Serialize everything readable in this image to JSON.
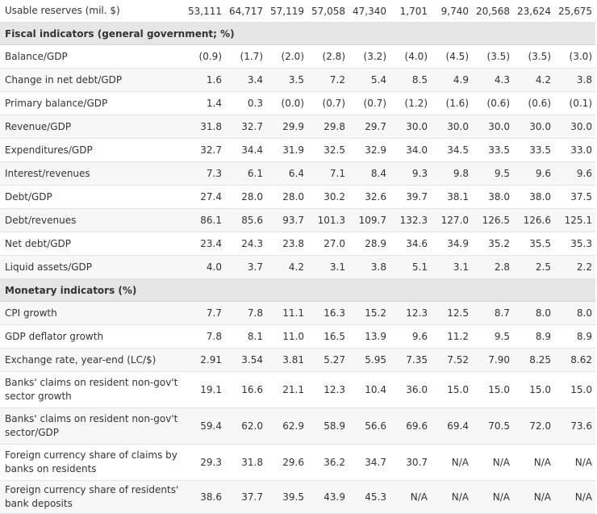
{
  "top_row": {
    "label": "Usable reserves (mil. $)",
    "values": [
      "53,111",
      "64,717",
      "57,119",
      "57,058",
      "47,340",
      "1,701",
      "9,740",
      "20,568",
      "23,624",
      "25,675"
    ]
  },
  "sections": [
    {
      "title": "Fiscal indicators (general government; %)",
      "rows": [
        {
          "label": "Balance/GDP",
          "values": [
            "(0.9)",
            "(1.7)",
            "(2.0)",
            "(2.8)",
            "(3.2)",
            "(4.0)",
            "(4.5)",
            "(3.5)",
            "(3.5)",
            "(3.0)"
          ]
        },
        {
          "label": "Change in net debt/GDP",
          "values": [
            "1.6",
            "3.4",
            "3.5",
            "7.2",
            "5.4",
            "8.5",
            "4.9",
            "4.3",
            "4.2",
            "3.8"
          ]
        },
        {
          "label": "Primary balance/GDP",
          "values": [
            "1.4",
            "0.3",
            "(0.0)",
            "(0.7)",
            "(0.7)",
            "(1.2)",
            "(1.6)",
            "(0.6)",
            "(0.6)",
            "(0.1)"
          ]
        },
        {
          "label": "Revenue/GDP",
          "values": [
            "31.8",
            "32.7",
            "29.9",
            "29.8",
            "29.7",
            "30.0",
            "30.0",
            "30.0",
            "30.0",
            "30.0"
          ]
        },
        {
          "label": "Expenditures/GDP",
          "values": [
            "32.7",
            "34.4",
            "31.9",
            "32.5",
            "32.9",
            "34.0",
            "34.5",
            "33.5",
            "33.5",
            "33.0"
          ]
        },
        {
          "label": "Interest/revenues",
          "values": [
            "7.3",
            "6.1",
            "6.4",
            "7.1",
            "8.4",
            "9.3",
            "9.8",
            "9.5",
            "9.6",
            "9.6"
          ]
        },
        {
          "label": "Debt/GDP",
          "values": [
            "27.4",
            "28.0",
            "28.0",
            "30.2",
            "32.6",
            "39.7",
            "38.1",
            "38.0",
            "38.0",
            "37.5"
          ]
        },
        {
          "label": "Debt/revenues",
          "values": [
            "86.1",
            "85.6",
            "93.7",
            "101.3",
            "109.7",
            "132.3",
            "127.0",
            "126.5",
            "126.6",
            "125.1"
          ]
        },
        {
          "label": "Net debt/GDP",
          "values": [
            "23.4",
            "24.3",
            "23.8",
            "27.0",
            "28.9",
            "34.6",
            "34.9",
            "35.2",
            "35.5",
            "35.3"
          ]
        },
        {
          "label": "Liquid assets/GDP",
          "values": [
            "4.0",
            "3.7",
            "4.2",
            "3.1",
            "3.8",
            "5.1",
            "3.1",
            "2.8",
            "2.5",
            "2.2"
          ]
        }
      ]
    },
    {
      "title": "Monetary indicators (%)",
      "rows": [
        {
          "label": "CPI growth",
          "values": [
            "7.7",
            "7.8",
            "11.1",
            "16.3",
            "15.2",
            "12.3",
            "12.5",
            "8.7",
            "8.0",
            "8.0"
          ]
        },
        {
          "label": "GDP deflator growth",
          "values": [
            "7.8",
            "8.1",
            "11.0",
            "16.5",
            "13.9",
            "9.6",
            "11.2",
            "9.5",
            "8.9",
            "8.9"
          ]
        },
        {
          "label": "Exchange rate, year-end (LC/$)",
          "values": [
            "2.91",
            "3.54",
            "3.81",
            "5.27",
            "5.95",
            "7.35",
            "7.52",
            "7.90",
            "8.25",
            "8.62"
          ]
        },
        {
          "label": "Banks' claims on resident non-gov't sector growth",
          "values": [
            "19.1",
            "16.6",
            "21.1",
            "12.3",
            "10.4",
            "36.0",
            "15.0",
            "15.0",
            "15.0",
            "15.0"
          ]
        },
        {
          "label": "Banks' claims on resident non-gov't sector/GDP",
          "values": [
            "59.4",
            "62.0",
            "62.9",
            "58.9",
            "56.6",
            "69.6",
            "69.4",
            "70.5",
            "72.0",
            "73.6"
          ]
        },
        {
          "label": "Foreign currency share of claims by banks on residents",
          "values": [
            "29.3",
            "31.8",
            "29.6",
            "36.2",
            "34.7",
            "30.7",
            "N/A",
            "N/A",
            "N/A",
            "N/A"
          ]
        },
        {
          "label": "Foreign currency share of residents' bank deposits",
          "values": [
            "38.6",
            "37.7",
            "39.5",
            "43.9",
            "45.3",
            "N/A",
            "N/A",
            "N/A",
            "N/A",
            "N/A"
          ]
        }
      ]
    }
  ]
}
